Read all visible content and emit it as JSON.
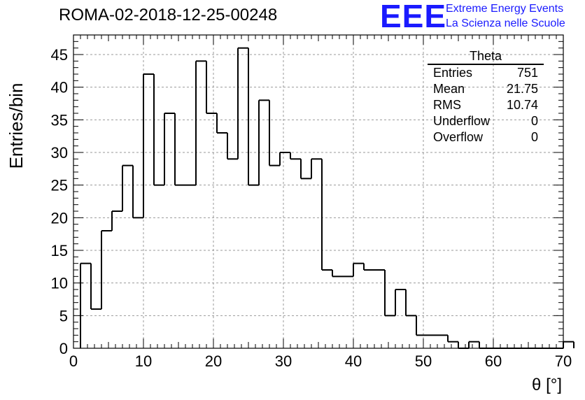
{
  "title": "ROMA-02-2018-12-25-00248",
  "logo": {
    "text": "EEE",
    "line1": "Extreme Energy Events",
    "line2": "La Scienza nelle Scuole",
    "color": "#1a1aff"
  },
  "stats_box": {
    "title": "Theta",
    "rows": [
      {
        "label": "Entries",
        "value": "751"
      },
      {
        "label": "Mean",
        "value": "21.75"
      },
      {
        "label": "RMS",
        "value": "10.74"
      },
      {
        "label": "Underflow",
        "value": "0"
      },
      {
        "label": "Overflow",
        "value": "0"
      }
    ]
  },
  "chart_data": {
    "type": "bar",
    "style": "step-histogram",
    "xlabel": "θ [°]",
    "ylabel": "Entries/bin",
    "xlim": [
      0,
      70
    ],
    "ylim": [
      0,
      48
    ],
    "grid": true,
    "bin_width": 1.5,
    "bin_start": 1,
    "values": [
      13,
      6,
      18,
      21,
      28,
      20,
      42,
      25,
      36,
      25,
      25,
      44,
      36,
      33,
      29,
      46,
      25,
      38,
      28,
      30,
      29,
      26,
      29,
      12,
      11,
      11,
      13,
      12,
      12,
      5,
      9,
      5,
      2,
      2,
      2,
      1,
      0,
      1,
      0,
      0,
      0,
      0,
      0,
      0,
      0,
      0,
      1
    ],
    "x_ticks": [
      "0",
      "10",
      "20",
      "30",
      "40",
      "50",
      "60",
      "70"
    ],
    "y_ticks": [
      "0",
      "5",
      "10",
      "15",
      "20",
      "25",
      "30",
      "35",
      "40",
      "45"
    ]
  }
}
